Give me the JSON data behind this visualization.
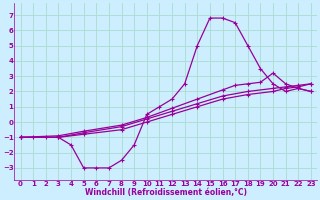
{
  "bg_color": "#cceeff",
  "grid_color": "#aaddcc",
  "line_color": "#990099",
  "xlabel": "Windchill (Refroidissement éolien,°C)",
  "yticks": [
    -3,
    -2,
    -1,
    0,
    1,
    2,
    3,
    4,
    5,
    6,
    7
  ],
  "xticks": [
    0,
    1,
    2,
    3,
    4,
    5,
    6,
    7,
    8,
    9,
    10,
    11,
    12,
    13,
    14,
    15,
    16,
    17,
    18,
    19,
    20,
    21,
    22,
    23
  ],
  "xlim": [
    -0.5,
    23.5
  ],
  "ylim": [
    -3.8,
    7.8
  ],
  "curve1_x": [
    0,
    1,
    2,
    3,
    4,
    5,
    6,
    7,
    8,
    9,
    10,
    11,
    12,
    13,
    14,
    15,
    16,
    17,
    18,
    19,
    20,
    21,
    22,
    23
  ],
  "curve1_y": [
    -1,
    -1,
    -1,
    -1,
    -1.5,
    -3,
    -3,
    -3,
    -2.5,
    -1.5,
    0.5,
    1,
    1.5,
    2.5,
    5,
    6.8,
    6.8,
    6.5,
    5,
    3.5,
    2.5,
    2,
    2.2,
    2
  ],
  "curve2_x": [
    0,
    3,
    5,
    8,
    10,
    12,
    14,
    16,
    18,
    20,
    21,
    22,
    23
  ],
  "curve2_y": [
    -1,
    -1,
    -0.8,
    -0.5,
    0,
    0.5,
    1.0,
    1.5,
    1.8,
    2.0,
    2.2,
    2.3,
    2.5
  ],
  "curve3_x": [
    0,
    3,
    5,
    8,
    10,
    12,
    14,
    16,
    18,
    20,
    21,
    22,
    23
  ],
  "curve3_y": [
    -1,
    -1,
    -0.7,
    -0.3,
    0.2,
    0.7,
    1.2,
    1.7,
    2.0,
    2.2,
    2.3,
    2.4,
    2.5
  ],
  "curve4_x": [
    0,
    3,
    5,
    8,
    10,
    12,
    14,
    16,
    17,
    18,
    19,
    20,
    21,
    22,
    23
  ],
  "curve4_y": [
    -1,
    -0.9,
    -0.6,
    -0.2,
    0.3,
    0.9,
    1.5,
    2.1,
    2.4,
    2.5,
    2.6,
    3.2,
    2.5,
    2.2,
    2.0
  ],
  "tick_fontsize": 5,
  "xlabel_fontsize": 5.5,
  "marker_size": 2.5,
  "line_width": 0.9
}
